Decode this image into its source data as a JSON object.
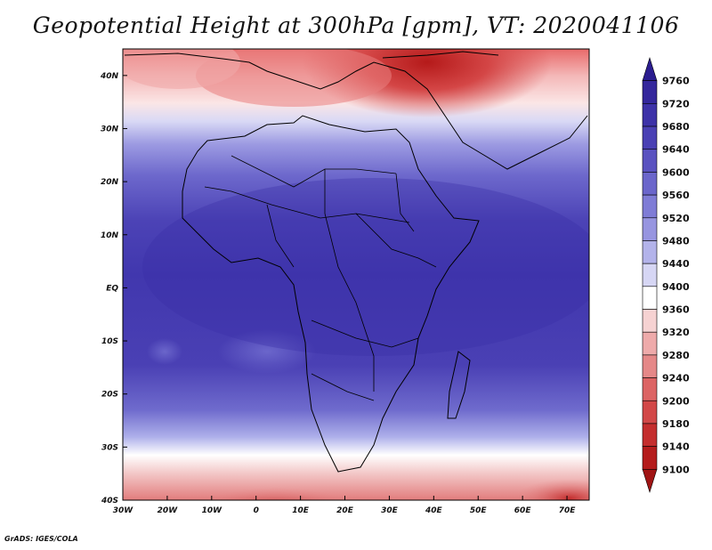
{
  "title": "Geopotential Height at 300hPa [gpm], VT: 2020041106",
  "credit": "GrADS: IGES/COLA",
  "map": {
    "lon_range": [
      -30,
      75
    ],
    "lat_range": [
      -40,
      45
    ],
    "lon_ticks": [
      "30W",
      "20W",
      "10W",
      "0",
      "10E",
      "20E",
      "30E",
      "40E",
      "50E",
      "60E",
      "70E"
    ],
    "lat_ticks": [
      "40S",
      "30S",
      "20S",
      "10S",
      "EQ",
      "10N",
      "20N",
      "30N",
      "40N"
    ]
  },
  "colorbar": {
    "levels": [
      "9760",
      "9720",
      "9680",
      "9640",
      "9600",
      "9560",
      "9520",
      "9480",
      "9440",
      "9400",
      "9360",
      "9320",
      "9280",
      "9240",
      "9200",
      "9180",
      "9140",
      "9100"
    ],
    "colors": [
      "#2b1d8f",
      "#34279c",
      "#3d32a8",
      "#4a40b4",
      "#5a52c0",
      "#6b66cb",
      "#7f7cd6",
      "#9795e0",
      "#b3b3ea",
      "#d6d6f4",
      "#ffffff",
      "#f6d2d2",
      "#eeaaaa",
      "#e58888",
      "#dc6464",
      "#d24848",
      "#c42e2e",
      "#b41c1c",
      "#a01414"
    ]
  }
}
